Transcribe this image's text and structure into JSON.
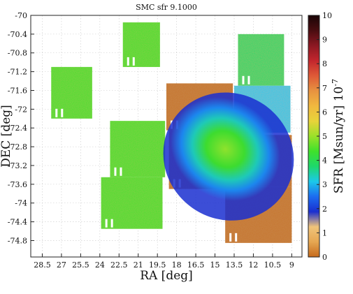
{
  "chart_data": {
    "type": "heatmap",
    "title": "SMC sfr 9.1000",
    "xlabel": "RA [deg]",
    "ylabel": "DEC [deg]",
    "xlim": [
      29.4,
      8.2
    ],
    "ylim": [
      -75.15,
      -70.0
    ],
    "x_ticks": [
      "28.5",
      "27",
      "25.5",
      "24",
      "22.5",
      "21",
      "19.5",
      "18",
      "16.5",
      "15",
      "13.5",
      "12",
      "10.5",
      "9"
    ],
    "x_tick_values": [
      28.5,
      27,
      25.5,
      24,
      22.5,
      21,
      19.5,
      18,
      16.5,
      15,
      13.5,
      12,
      10.5,
      9
    ],
    "y_ticks": [
      "-70",
      "-70.4",
      "-70.8",
      "-71.2",
      "-71.6",
      "-72",
      "-72.4",
      "-72.8",
      "-73.2",
      "-73.6",
      "-74",
      "-74.4",
      "-74.8"
    ],
    "y_tick_values": [
      -70,
      -70.4,
      -70.8,
      -71.2,
      -71.6,
      -72,
      -72.4,
      -72.8,
      -73.2,
      -73.6,
      -74,
      -74.4,
      -74.8
    ],
    "grid": true,
    "colorbar": {
      "label": "SFR [Msun/yr] 10",
      "label_exponent": "-7",
      "range": [
        0,
        10
      ],
      "ticks": [
        "0",
        "1",
        "2",
        "3",
        "4",
        "5",
        "6",
        "7",
        "8",
        "9",
        "10"
      ],
      "colors": [
        "#c66a1c",
        "#e6a752",
        "#f0c47a",
        "#1a2fd0",
        "#1c6cf0",
        "#1cc9e9",
        "#1ed86b",
        "#3fe12b",
        "#9be12a",
        "#e8d33a",
        "#f1b83f",
        "#e89240",
        "#de5a37",
        "#c3262d",
        "#8c1822",
        "#4a0d10",
        "#1a0507"
      ]
    },
    "tiles": [
      {
        "ra": [
          22.2,
          19.3
        ],
        "dec": [
          -70.15,
          -71.1
        ],
        "level": 4.3
      },
      {
        "ra": [
          13.2,
          9.6
        ],
        "dec": [
          -70.4,
          -71.5
        ],
        "level": 4.0
      },
      {
        "ra": [
          27.8,
          24.6
        ],
        "dec": [
          -71.1,
          -72.2
        ],
        "level": 4.6
      },
      {
        "ra": [
          18.8,
          13.6
        ],
        "dec": [
          -71.45,
          -72.45
        ],
        "level": 1.2
      },
      {
        "ra": [
          13.5,
          9.1
        ],
        "dec": [
          -71.5,
          -72.5
        ],
        "level": 3.4
      },
      {
        "ra": [
          23.2,
          18.9
        ],
        "dec": [
          -72.25,
          -73.45
        ],
        "level": 4.5
      },
      {
        "ra": [
          18.6,
          13.2
        ],
        "dec": [
          -72.45,
          -73.7
        ],
        "level": 2.6
      },
      {
        "ra": [
          13.7,
          9.0
        ],
        "dec": [
          -72.55,
          -73.65
        ],
        "level": 2.4
      },
      {
        "ra": [
          23.9,
          19.1
        ],
        "dec": [
          -73.45,
          -74.55
        ],
        "level": 4.4
      },
      {
        "ra": [
          14.2,
          9.0
        ],
        "dec": [
          -73.65,
          -74.85
        ],
        "level": 1.9
      }
    ]
  }
}
